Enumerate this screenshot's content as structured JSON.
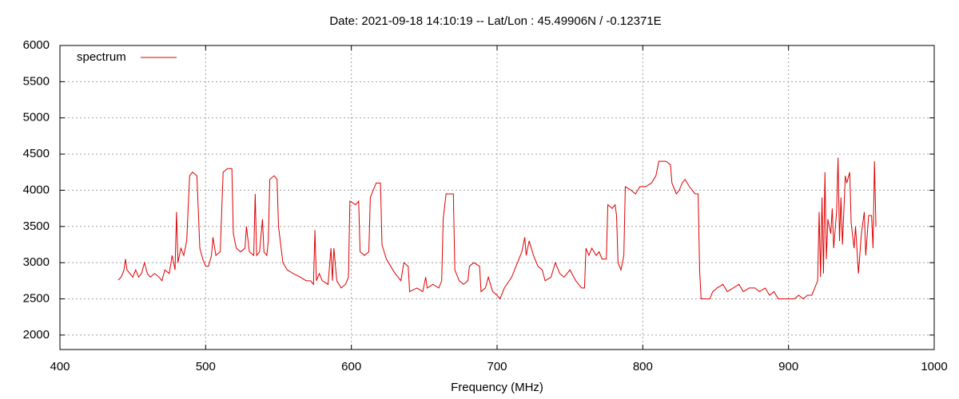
{
  "chart_data": {
    "type": "line",
    "title": "Date: 2021-09-18 14:10:19  --  Lat/Lon : 45.49906N / -0.12371E",
    "x_label": "Frequency (MHz)",
    "xlim": [
      400,
      1000
    ],
    "xticks": [
      400,
      500,
      600,
      700,
      800,
      900,
      1000
    ],
    "ylim": [
      1800,
      6000
    ],
    "yticks": [
      2000,
      2500,
      3000,
      3500,
      4000,
      4500,
      5000,
      5500,
      6000
    ],
    "grid": true,
    "legend": "top-left",
    "x": [
      440,
      442,
      444,
      445,
      446,
      448,
      450,
      452,
      454,
      456,
      458,
      460,
      462,
      465,
      468,
      470,
      472,
      475,
      477,
      479,
      480,
      481,
      483,
      485,
      487,
      489,
      491,
      494,
      496,
      498,
      500,
      502,
      504,
      505,
      507,
      510,
      512,
      515,
      518,
      519,
      521,
      524,
      527,
      528,
      530,
      533,
      534,
      535,
      537,
      539,
      540,
      542,
      543,
      544,
      547,
      549,
      550,
      553,
      556,
      560,
      565,
      569,
      572,
      574,
      575,
      576,
      578,
      580,
      584,
      586,
      587,
      588,
      590,
      593,
      596,
      598,
      599,
      603,
      605,
      606,
      609,
      612,
      613,
      617,
      620,
      621,
      624,
      627,
      630,
      634,
      636,
      639,
      640,
      645,
      649,
      651,
      652,
      656,
      660,
      662,
      663,
      665,
      670,
      671,
      674,
      677,
      680,
      681,
      684,
      688,
      689,
      692,
      694,
      697,
      700,
      702,
      705,
      710,
      714,
      717,
      719,
      720,
      722,
      725,
      728,
      731,
      733,
      737,
      740,
      743,
      746,
      750,
      754,
      758,
      760,
      761,
      763,
      765,
      768,
      770,
      772,
      774,
      775,
      776,
      779,
      781,
      782,
      783,
      785,
      787,
      788,
      792,
      795,
      798,
      802,
      806,
      809,
      811,
      816,
      819,
      820,
      823,
      825,
      827,
      829,
      832,
      836,
      838,
      839,
      840,
      843,
      846,
      848,
      851,
      855,
      858,
      862,
      866,
      869,
      873,
      877,
      880,
      884,
      887,
      890,
      893,
      897,
      900,
      904,
      907,
      910,
      913,
      916,
      918,
      920,
      921,
      922,
      923,
      924,
      925,
      926,
      927,
      929,
      930,
      931,
      933,
      934,
      935,
      936,
      937,
      939,
      940,
      942,
      943,
      945,
      946,
      948,
      950,
      952,
      953,
      955,
      957,
      958,
      959,
      960
    ],
    "series": [
      {
        "name": "spectrum",
        "color": "#dd0000",
        "values": [
          2760,
          2800,
          2900,
          3050,
          2900,
          2850,
          2800,
          2900,
          2800,
          2850,
          3000,
          2850,
          2800,
          2850,
          2800,
          2750,
          2900,
          2850,
          3100,
          2900,
          3700,
          3000,
          3200,
          3100,
          3300,
          4200,
          4250,
          4200,
          3200,
          3050,
          2950,
          2950,
          3100,
          3350,
          3100,
          3150,
          4250,
          4300,
          4300,
          3400,
          3200,
          3150,
          3200,
          3500,
          3150,
          3100,
          3950,
          3100,
          3150,
          3600,
          3150,
          3100,
          3300,
          4150,
          4200,
          4150,
          3500,
          3000,
          2900,
          2850,
          2800,
          2750,
          2750,
          2700,
          3450,
          2750,
          2850,
          2750,
          2700,
          3200,
          2750,
          3200,
          2750,
          2650,
          2700,
          2800,
          3850,
          3800,
          3850,
          3150,
          3100,
          3150,
          3900,
          4100,
          4100,
          3250,
          3050,
          2950,
          2850,
          2750,
          3000,
          2950,
          2600,
          2650,
          2600,
          2800,
          2650,
          2700,
          2650,
          2750,
          3600,
          3950,
          3950,
          2900,
          2750,
          2700,
          2750,
          2950,
          3000,
          2950,
          2600,
          2650,
          2800,
          2600,
          2550,
          2500,
          2650,
          2800,
          3000,
          3150,
          3350,
          3100,
          3300,
          3100,
          2950,
          2900,
          2750,
          2800,
          3000,
          2850,
          2800,
          2900,
          2750,
          2650,
          2650,
          3200,
          3100,
          3200,
          3100,
          3150,
          3050,
          3050,
          3050,
          3800,
          3750,
          3800,
          3650,
          3000,
          2900,
          3100,
          4050,
          4000,
          3950,
          4050,
          4050,
          4100,
          4200,
          4400,
          4400,
          4350,
          4100,
          3950,
          4000,
          4100,
          4150,
          4050,
          3950,
          3950,
          2900,
          2500,
          2500,
          2500,
          2600,
          2650,
          2700,
          2600,
          2650,
          2700,
          2600,
          2650,
          2650,
          2600,
          2650,
          2550,
          2600,
          2500,
          2500,
          2500,
          2500,
          2550,
          2500,
          2550,
          2550,
          2650,
          2750,
          3700,
          2800,
          3900,
          2850,
          4250,
          3050,
          3600,
          3400,
          3750,
          3200,
          3700,
          4450,
          3300,
          3900,
          3250,
          4200,
          4100,
          4250,
          3550,
          3200,
          3500,
          2850,
          3400,
          3700,
          3100,
          3650,
          3650,
          3200,
          4400,
          3500
        ]
      }
    ]
  }
}
